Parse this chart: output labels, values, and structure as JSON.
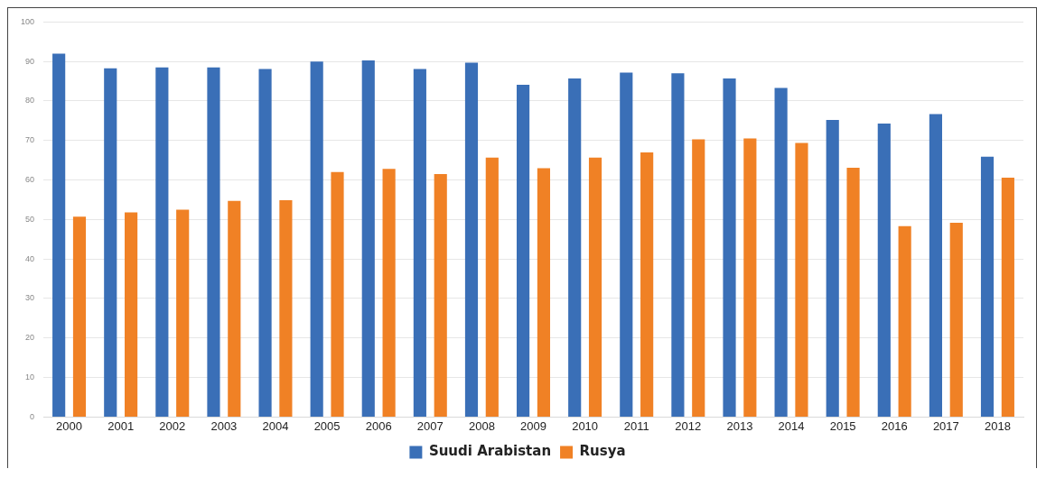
{
  "chart_data": {
    "type": "bar",
    "categories": [
      "2000",
      "2001",
      "2002",
      "2003",
      "2004",
      "2005",
      "2006",
      "2007",
      "2008",
      "2009",
      "2010",
      "2011",
      "2012",
      "2013",
      "2014",
      "2015",
      "2016",
      "2017",
      "2018"
    ],
    "series": [
      {
        "name": "Suudi Arabistan",
        "color": "#3a6fb7",
        "values": [
          92,
          88.3,
          88.5,
          88.5,
          88.1,
          90,
          90.3,
          88.1,
          89.7,
          84.1,
          85.7,
          87.2,
          87,
          85.7,
          83.3,
          75.2,
          74.3,
          76.7,
          65.9
        ]
      },
      {
        "name": "Rusya",
        "color": "#f08125",
        "values": [
          50.7,
          51.8,
          52.5,
          54.7,
          54.9,
          62,
          62.8,
          61.5,
          65.7,
          63,
          65.7,
          67,
          70.3,
          70.5,
          69.4,
          63.1,
          48.3,
          49.2,
          60.6
        ]
      }
    ],
    "ylim": [
      0,
      100
    ],
    "yticks": [
      0,
      10,
      20,
      30,
      40,
      50,
      60,
      70,
      80,
      90,
      100
    ],
    "grid": "y",
    "legend": "bottom"
  }
}
